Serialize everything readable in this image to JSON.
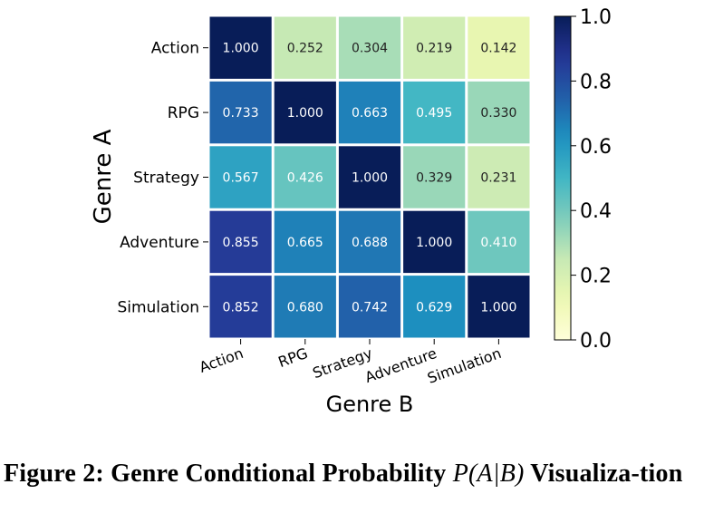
{
  "chart_data": {
    "type": "heatmap",
    "title": "",
    "xlabel": "Genre B",
    "ylabel": "Genre A",
    "x_categories": [
      "Action",
      "RPG",
      "Strategy",
      "Adventure",
      "Simulation"
    ],
    "y_categories": [
      "Action",
      "RPG",
      "Strategy",
      "Adventure",
      "Simulation"
    ],
    "values": [
      [
        1.0,
        0.252,
        0.304,
        0.219,
        0.142
      ],
      [
        0.733,
        1.0,
        0.663,
        0.495,
        0.33
      ],
      [
        0.567,
        0.426,
        1.0,
        0.329,
        0.231
      ],
      [
        0.855,
        0.665,
        0.688,
        1.0,
        0.41
      ],
      [
        0.852,
        0.68,
        0.742,
        0.629,
        1.0
      ]
    ],
    "value_labels": [
      [
        "1.000",
        "0.252",
        "0.304",
        "0.219",
        "0.142"
      ],
      [
        "0.733",
        "1.000",
        "0.663",
        "0.495",
        "0.330"
      ],
      [
        "0.567",
        "0.426",
        "1.000",
        "0.329",
        "0.231"
      ],
      [
        "0.855",
        "0.665",
        "0.688",
        "1.000",
        "0.410"
      ],
      [
        "0.852",
        "0.680",
        "0.742",
        "0.629",
        "1.000"
      ]
    ],
    "colormap": "YlGnBu",
    "colorbar": {
      "range": [
        0.0,
        1.0
      ],
      "ticks": [
        0.0,
        0.2,
        0.4,
        0.6,
        0.8,
        1.0
      ],
      "tick_labels": [
        "0.0",
        "0.2",
        "0.4",
        "0.6",
        "0.8",
        "1.0"
      ]
    },
    "grid": false
  },
  "caption": {
    "prefix": "Figure 2: Genre Conditional Probability ",
    "math": "P(A|B)",
    "suffix": " Visualiza-tion"
  }
}
